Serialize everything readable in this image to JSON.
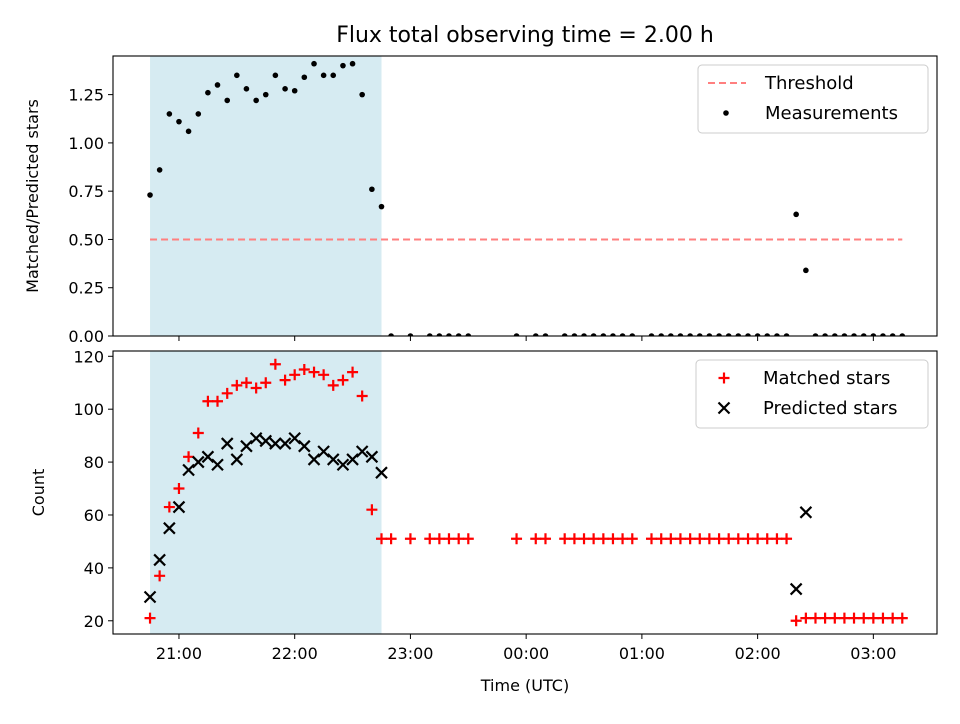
{
  "chart_data": {
    "title": "Flux total observing time = 2.00 h",
    "xlabel": "Time (UTC)",
    "x_tick_labels": [
      "21:00",
      "22:00",
      "23:00",
      "00:00",
      "01:00",
      "02:00",
      "03:00"
    ],
    "x_tick_hours": [
      21,
      22,
      23,
      24,
      25,
      26,
      27
    ],
    "xlim_hours": [
      20.43,
      27.55
    ],
    "shaded_interval_hours": [
      20.75,
      22.75
    ],
    "colors": {
      "shade": "#add8e6",
      "threshold": "#ff7f7f",
      "measurements": "#000000",
      "matched": "#ff0000",
      "predicted": "#000000"
    },
    "panels": [
      {
        "type": "scatter",
        "ylabel": "Matched/Predicted stars",
        "ylim": [
          0,
          1.45
        ],
        "y_tick_values": [
          0.0,
          0.25,
          0.5,
          0.75,
          1.0,
          1.25
        ],
        "y_tick_labels": [
          "0.00",
          "0.25",
          "0.50",
          "0.75",
          "1.00",
          "1.25"
        ],
        "threshold": {
          "name": "Threshold",
          "value": 0.5,
          "x_start": 20.75,
          "x_end": 27.25
        },
        "legend": {
          "position": "upper right",
          "entries": [
            "Threshold",
            "Measurements"
          ]
        },
        "series": [
          {
            "name": "Measurements",
            "marker": "dot",
            "x": [
              20.75,
              20.833,
              20.917,
              21.0,
              21.083,
              21.167,
              21.25,
              21.333,
              21.417,
              21.5,
              21.583,
              21.667,
              21.75,
              21.833,
              21.917,
              22.0,
              22.083,
              22.167,
              22.25,
              22.333,
              22.417,
              22.5,
              22.583,
              22.667,
              22.75,
              22.833,
              23.0,
              23.167,
              23.25,
              23.333,
              23.417,
              23.5,
              23.917,
              24.083,
              24.167,
              24.333,
              24.417,
              24.5,
              24.583,
              24.667,
              24.75,
              24.833,
              24.917,
              25.083,
              25.167,
              25.25,
              25.333,
              25.417,
              25.5,
              25.583,
              25.667,
              25.75,
              25.833,
              25.917,
              26.0,
              26.083,
              26.167,
              26.25,
              26.333,
              26.417,
              26.5,
              26.583,
              26.667,
              26.75,
              26.833,
              26.917,
              27.0,
              27.083,
              27.167,
              27.25
            ],
            "y": [
              0.73,
              0.86,
              1.15,
              1.11,
              1.06,
              1.15,
              1.26,
              1.3,
              1.22,
              1.35,
              1.28,
              1.22,
              1.25,
              1.35,
              1.28,
              1.27,
              1.34,
              1.41,
              1.35,
              1.35,
              1.4,
              1.41,
              1.25,
              0.76,
              0.67,
              0,
              0,
              0,
              0,
              0,
              0,
              0,
              0,
              0,
              0,
              0,
              0,
              0,
              0,
              0,
              0,
              0,
              0,
              0,
              0,
              0,
              0,
              0,
              0,
              0,
              0,
              0,
              0,
              0,
              0,
              0,
              0,
              0,
              0.63,
              0.34,
              0,
              0,
              0,
              0,
              0,
              0,
              0,
              0,
              0,
              0
            ]
          }
        ]
      },
      {
        "type": "scatter",
        "ylabel": "Count",
        "ylim": [
          15,
          122
        ],
        "y_tick_values": [
          20,
          40,
          60,
          80,
          100,
          120
        ],
        "y_tick_labels": [
          "20",
          "40",
          "60",
          "80",
          "100",
          "120"
        ],
        "legend": {
          "position": "upper right",
          "entries": [
            "Matched stars",
            "Predicted stars"
          ]
        },
        "series": [
          {
            "name": "Matched stars",
            "marker": "plus",
            "x": [
              20.75,
              20.833,
              20.917,
              21.0,
              21.083,
              21.167,
              21.25,
              21.333,
              21.417,
              21.5,
              21.583,
              21.667,
              21.75,
              21.833,
              21.917,
              22.0,
              22.083,
              22.167,
              22.25,
              22.333,
              22.417,
              22.5,
              22.583,
              22.667,
              22.75,
              22.833,
              23.0,
              23.167,
              23.25,
              23.333,
              23.417,
              23.5,
              23.917,
              24.083,
              24.167,
              24.333,
              24.417,
              24.5,
              24.583,
              24.667,
              24.75,
              24.833,
              24.917,
              25.083,
              25.167,
              25.25,
              25.333,
              25.417,
              25.5,
              25.583,
              25.667,
              25.75,
              25.833,
              25.917,
              26.0,
              26.083,
              26.167,
              26.25,
              26.333,
              26.417,
              26.5,
              26.583,
              26.667,
              26.75,
              26.833,
              26.917,
              27.0,
              27.083,
              27.167,
              27.25
            ],
            "y": [
              21,
              37,
              63,
              70,
              82,
              91,
              103,
              103,
              106,
              109,
              110,
              108,
              110,
              117,
              111,
              113,
              115,
              114,
              113,
              109,
              111,
              114,
              105,
              62,
              51,
              51,
              51,
              51,
              51,
              51,
              51,
              51,
              51,
              51,
              51,
              51,
              51,
              51,
              51,
              51,
              51,
              51,
              51,
              51,
              51,
              51,
              51,
              51,
              51,
              51,
              51,
              51,
              51,
              51,
              51,
              51,
              51,
              51,
              20,
              21,
              21,
              21,
              21,
              21,
              21,
              21,
              21,
              21,
              21,
              21
            ]
          },
          {
            "name": "Predicted stars",
            "marker": "x",
            "x": [
              20.75,
              20.833,
              20.917,
              21.0,
              21.083,
              21.167,
              21.25,
              21.333,
              21.417,
              21.5,
              21.583,
              21.667,
              21.75,
              21.833,
              21.917,
              22.0,
              22.083,
              22.167,
              22.25,
              22.333,
              22.417,
              22.5,
              22.583,
              22.667,
              22.75,
              26.333,
              26.417
            ],
            "y": [
              29,
              43,
              55,
              63,
              77,
              80,
              82,
              79,
              87,
              81,
              86,
              89,
              88,
              87,
              87,
              89,
              86,
              81,
              84,
              81,
              79,
              81,
              84,
              82,
              76,
              32,
              61
            ]
          }
        ]
      }
    ]
  }
}
